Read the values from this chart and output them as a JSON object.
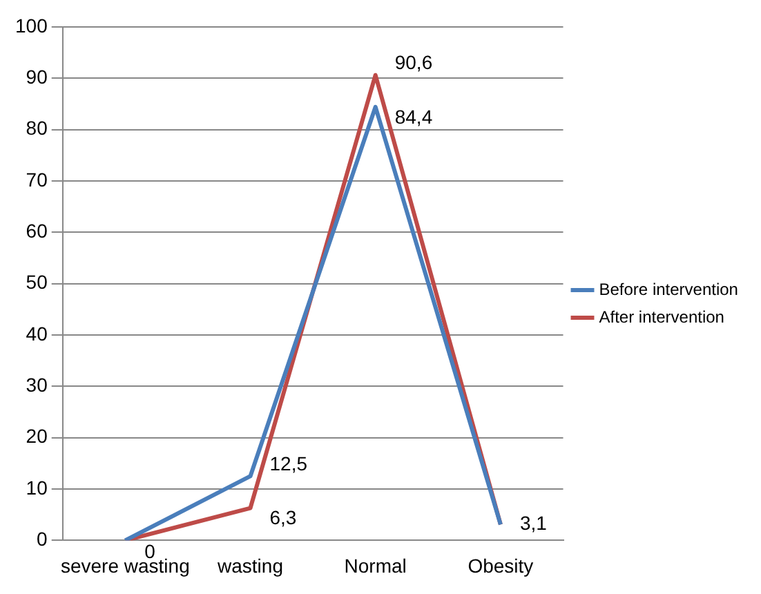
{
  "chart_data": {
    "type": "line",
    "categories": [
      "severe wasting",
      "wasting",
      "Normal",
      "Obesity"
    ],
    "series": [
      {
        "name": "Before intervention",
        "color": "#4a7ebb",
        "values": [
          0,
          12.5,
          84.4,
          3.1
        ],
        "value_labels": [
          null,
          "12,5",
          "84,4",
          null
        ]
      },
      {
        "name": "After intervention",
        "color": "#be4b48",
        "values": [
          0,
          6.3,
          90.6,
          3.1
        ],
        "value_labels": [
          "0",
          "6,3",
          "90,6",
          "3,1"
        ]
      }
    ],
    "ylim": [
      0,
      100
    ],
    "yticks": [
      0,
      10,
      20,
      30,
      40,
      50,
      60,
      70,
      80,
      90,
      100
    ],
    "grid": "y",
    "legend": "right",
    "marker": "none",
    "line_style": "solid"
  }
}
